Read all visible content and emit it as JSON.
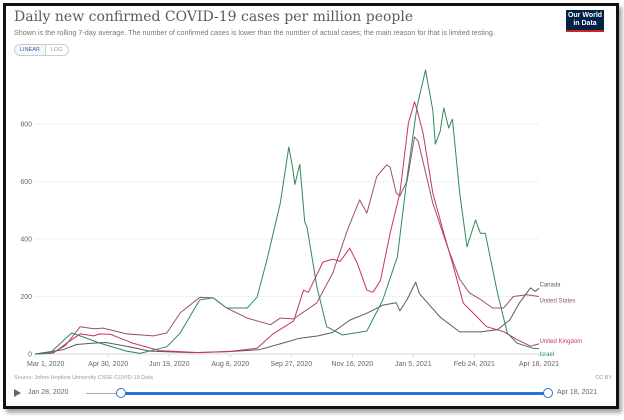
{
  "header": {
    "title": "Daily new confirmed COVID-19 cases per million people",
    "subtitle": "Shown is the rolling 7-day average. The number of confirmed cases is lower than the number of actual cases; the main reason for that is limited testing.",
    "logo": "Our World in Data",
    "toggle": {
      "linear": "LINEAR",
      "log": "LOG",
      "selected": "LINEAR"
    }
  },
  "footer": {
    "source": "Source: Johns Hopkins University CSSE COVID-19 Data",
    "license": "CC BY"
  },
  "timeline": {
    "start": "Jan 28, 2020",
    "end": "Apr 18, 2021",
    "range_start": "Mar 1, 2020",
    "range_end": "Apr 18, 2021"
  },
  "chart_data": {
    "type": "line",
    "title": "Daily new confirmed COVID-19 cases per million people",
    "xlim": [
      "2020-03-01",
      "2021-04-18"
    ],
    "ylim": [
      0,
      1000
    ],
    "grid": "horizontal dotted",
    "y_ticks": [
      0,
      200,
      400,
      600,
      800
    ],
    "x_ticks": [
      {
        "date": "2020-03-01",
        "label": "Mar 1, 2020"
      },
      {
        "date": "2020-04-30",
        "label": "Apr 30, 2020"
      },
      {
        "date": "2020-06-19",
        "label": "Jun 19, 2020"
      },
      {
        "date": "2020-08-08",
        "label": "Aug 8, 2020"
      },
      {
        "date": "2020-09-27",
        "label": "Sep 27, 2020"
      },
      {
        "date": "2020-11-16",
        "label": "Nov 16, 2020"
      },
      {
        "date": "2021-01-05",
        "label": "Jan 5, 2021"
      },
      {
        "date": "2021-02-24",
        "label": "Feb 24, 2021"
      },
      {
        "date": "2021-04-18",
        "label": "Apr 18, 2021"
      }
    ],
    "legend": "inline labels at line ends",
    "series": [
      {
        "name": "Canada",
        "color": "#5a5a6a",
        "points": [
          [
            "2020-03-01",
            0
          ],
          [
            "2020-03-24",
            15
          ],
          [
            "2020-04-04",
            33
          ],
          [
            "2020-04-18",
            38
          ],
          [
            "2020-04-28",
            40
          ],
          [
            "2020-05-15",
            27
          ],
          [
            "2020-06-03",
            10
          ],
          [
            "2020-07-07",
            5
          ],
          [
            "2020-08-05",
            8
          ],
          [
            "2020-09-01",
            15
          ],
          [
            "2020-09-20",
            38
          ],
          [
            "2020-10-04",
            55
          ],
          [
            "2020-10-19",
            63
          ],
          [
            "2020-10-31",
            75
          ],
          [
            "2020-11-14",
            118
          ],
          [
            "2020-11-28",
            142
          ],
          [
            "2020-12-11",
            170
          ],
          [
            "2020-12-22",
            178
          ],
          [
            "2020-12-25",
            150
          ],
          [
            "2020-12-31",
            190
          ],
          [
            "2021-01-07",
            250
          ],
          [
            "2021-01-10",
            210
          ],
          [
            "2021-01-27",
            128
          ],
          [
            "2021-02-12",
            77
          ],
          [
            "2021-03-01",
            77
          ],
          [
            "2021-03-15",
            85
          ],
          [
            "2021-03-25",
            118
          ],
          [
            "2021-04-02",
            178
          ],
          [
            "2021-04-11",
            230
          ],
          [
            "2021-04-15",
            218
          ],
          [
            "2021-04-18",
            228
          ]
        ]
      },
      {
        "name": "United States",
        "color": "#a0525e",
        "points": [
          [
            "2020-03-01",
            0
          ],
          [
            "2020-03-16",
            5
          ],
          [
            "2020-03-26",
            30
          ],
          [
            "2020-04-07",
            95
          ],
          [
            "2020-04-18",
            88
          ],
          [
            "2020-04-26",
            90
          ],
          [
            "2020-05-15",
            70
          ],
          [
            "2020-06-06",
            63
          ],
          [
            "2020-06-17",
            73
          ],
          [
            "2020-06-28",
            143
          ],
          [
            "2020-07-14",
            197
          ],
          [
            "2020-07-25",
            195
          ],
          [
            "2020-08-05",
            160
          ],
          [
            "2020-08-22",
            125
          ],
          [
            "2020-09-10",
            102
          ],
          [
            "2020-09-18",
            125
          ],
          [
            "2020-09-29",
            122
          ],
          [
            "2020-10-18",
            178
          ],
          [
            "2020-10-31",
            282
          ],
          [
            "2020-11-12",
            431
          ],
          [
            "2020-11-22",
            536
          ],
          [
            "2020-11-28",
            490
          ],
          [
            "2020-12-06",
            617
          ],
          [
            "2020-12-14",
            657
          ],
          [
            "2020-12-17",
            650
          ],
          [
            "2020-12-22",
            560
          ],
          [
            "2020-12-25",
            550
          ],
          [
            "2020-12-31",
            603
          ],
          [
            "2021-01-06",
            755
          ],
          [
            "2021-01-09",
            740
          ],
          [
            "2021-01-21",
            525
          ],
          [
            "2021-02-02",
            373
          ],
          [
            "2021-02-12",
            260
          ],
          [
            "2021-02-20",
            213
          ],
          [
            "2021-03-01",
            190
          ],
          [
            "2021-03-11",
            160
          ],
          [
            "2021-03-20",
            160
          ],
          [
            "2021-03-28",
            200
          ],
          [
            "2021-04-08",
            206
          ],
          [
            "2021-04-18",
            200
          ]
        ]
      },
      {
        "name": "United Kingdom",
        "color": "#c7336b",
        "points": [
          [
            "2020-03-01",
            0
          ],
          [
            "2020-03-16",
            3
          ],
          [
            "2020-03-27",
            38
          ],
          [
            "2020-04-07",
            70
          ],
          [
            "2020-04-18",
            63
          ],
          [
            "2020-04-23",
            70
          ],
          [
            "2020-05-02",
            68
          ],
          [
            "2020-05-20",
            38
          ],
          [
            "2020-06-11",
            12
          ],
          [
            "2020-07-14",
            5
          ],
          [
            "2020-08-10",
            10
          ],
          [
            "2020-08-30",
            20
          ],
          [
            "2020-09-12",
            70
          ],
          [
            "2020-09-29",
            115
          ],
          [
            "2020-10-07",
            222
          ],
          [
            "2020-10-11",
            215
          ],
          [
            "2020-10-23",
            320
          ],
          [
            "2020-10-31",
            330
          ],
          [
            "2020-11-06",
            322
          ],
          [
            "2020-11-14",
            368
          ],
          [
            "2020-11-20",
            316
          ],
          [
            "2020-11-28",
            222
          ],
          [
            "2020-12-03",
            215
          ],
          [
            "2020-12-09",
            255
          ],
          [
            "2020-12-17",
            420
          ],
          [
            "2020-12-25",
            560
          ],
          [
            "2021-01-01",
            803
          ],
          [
            "2021-01-06",
            877
          ],
          [
            "2021-01-08",
            850
          ],
          [
            "2021-01-13",
            768
          ],
          [
            "2021-01-21",
            560
          ],
          [
            "2021-01-30",
            420
          ],
          [
            "2021-02-07",
            302
          ],
          [
            "2021-02-15",
            177
          ],
          [
            "2021-02-26",
            130
          ],
          [
            "2021-03-06",
            95
          ],
          [
            "2021-03-20",
            78
          ],
          [
            "2021-03-31",
            50
          ],
          [
            "2021-04-11",
            27
          ],
          [
            "2021-04-18",
            35
          ]
        ]
      },
      {
        "name": "Israel",
        "color": "#2f8a5a",
        "points": [
          [
            "2020-03-01",
            0
          ],
          [
            "2020-03-13",
            2
          ],
          [
            "2020-03-31",
            73
          ],
          [
            "2020-04-07",
            63
          ],
          [
            "2020-04-23",
            38
          ],
          [
            "2020-05-15",
            10
          ],
          [
            "2020-05-26",
            2
          ],
          [
            "2020-06-17",
            25
          ],
          [
            "2020-06-28",
            73
          ],
          [
            "2020-07-14",
            188
          ],
          [
            "2020-07-25",
            195
          ],
          [
            "2020-08-05",
            160
          ],
          [
            "2020-08-22",
            160
          ],
          [
            "2020-08-30",
            198
          ],
          [
            "2020-09-07",
            327
          ],
          [
            "2020-09-18",
            525
          ],
          [
            "2020-09-25",
            720
          ],
          [
            "2020-09-28",
            650
          ],
          [
            "2020-09-30",
            590
          ],
          [
            "2020-10-04",
            660
          ],
          [
            "2020-10-08",
            460
          ],
          [
            "2020-10-10",
            440
          ],
          [
            "2020-10-18",
            233
          ],
          [
            "2020-10-26",
            95
          ],
          [
            "2020-11-08",
            66
          ],
          [
            "2020-11-28",
            80
          ],
          [
            "2020-12-11",
            188
          ],
          [
            "2020-12-23",
            338
          ],
          [
            "2020-12-31",
            617
          ],
          [
            "2021-01-08",
            860
          ],
          [
            "2021-01-15",
            988
          ],
          [
            "2021-01-21",
            848
          ],
          [
            "2021-01-23",
            730
          ],
          [
            "2021-01-27",
            775
          ],
          [
            "2021-01-30",
            856
          ],
          [
            "2021-02-03",
            786
          ],
          [
            "2021-02-06",
            817
          ],
          [
            "2021-02-12",
            560
          ],
          [
            "2021-02-18",
            373
          ],
          [
            "2021-02-25",
            466
          ],
          [
            "2021-03-01",
            420
          ],
          [
            "2021-03-05",
            420
          ],
          [
            "2021-03-15",
            212
          ],
          [
            "2021-03-23",
            73
          ],
          [
            "2021-03-31",
            38
          ],
          [
            "2021-04-13",
            20
          ],
          [
            "2021-04-18",
            18
          ]
        ]
      }
    ]
  }
}
